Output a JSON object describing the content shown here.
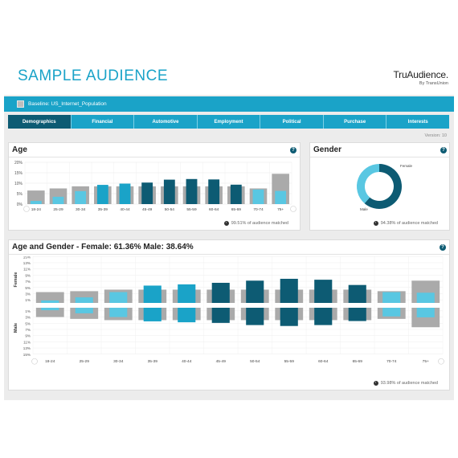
{
  "header": {
    "title": "SAMPLE AUDIENCE",
    "logo_brand": "TruAudience.",
    "logo_sub": "By TransUnion"
  },
  "baseline": {
    "label": "Baseline: US_Internet_Population"
  },
  "tabs": [
    {
      "label": "Demographics",
      "active": true
    },
    {
      "label": "Financial"
    },
    {
      "label": "Automotive"
    },
    {
      "label": "Employment"
    },
    {
      "label": "Political"
    },
    {
      "label": "Purchase"
    },
    {
      "label": "Interests"
    }
  ],
  "version": "Version: 10",
  "age_card": {
    "title": "Age",
    "help": "?",
    "matched": "99.51% of audience matched"
  },
  "gender_card": {
    "title": "Gender",
    "help": "?",
    "matched": "94.38% of audience matched"
  },
  "age_gender_card": {
    "title": "Age and Gender - Female: 61.36% Male: 38.64%",
    "help": "?",
    "matched": "93.98% of audience matched",
    "female_label": "Female",
    "male_label": "Male"
  },
  "colors": {
    "accent": "#1aa3c8",
    "dark": "#0d5b73",
    "light": "#59c7e2",
    "baseline": "#aaaaaa"
  },
  "chart_data": [
    {
      "type": "bar",
      "id": "age",
      "categories": [
        "18-24",
        "25-29",
        "30-34",
        "35-39",
        "40-44",
        "45-49",
        "50-54",
        "55-59",
        "60-64",
        "65-69",
        "70-74",
        "75+"
      ],
      "series": [
        {
          "values": [
            6.5,
            7.5,
            8.5,
            8.5,
            8.5,
            8.5,
            8.5,
            8.5,
            8.5,
            8.5,
            7.5,
            14.5
          ]
        },
        {
          "values": [
            1.5,
            3.5,
            6.2,
            9.2,
            9.8,
            10.3,
            11.7,
            12.0,
            11.8,
            9.3,
            7.0,
            6.3
          ]
        }
      ],
      "yticks": [
        "0%",
        "5%",
        "10%",
        "15%",
        "20%"
      ],
      "ylim": [
        0,
        20
      ]
    },
    {
      "type": "pie",
      "id": "gender",
      "labels": [
        "Female",
        "Male"
      ],
      "values": [
        61.36,
        38.64
      ]
    },
    {
      "type": "bar",
      "id": "age_gender",
      "categories": [
        "18-24",
        "25-29",
        "30-34",
        "35-39",
        "40-44",
        "45-49",
        "50-54",
        "55-59",
        "60-64",
        "65-69",
        "70-74",
        "75+"
      ],
      "series": [
        {
          "name": "Female",
          "values": [
            3.5,
            3.8,
            4.3,
            4.3,
            4.3,
            4.3,
            4.3,
            4.3,
            4.3,
            4.3,
            3.8,
            7.2
          ]
        },
        {
          "name": "Female",
          "values": [
            0.8,
            1.8,
            3.5,
            5.6,
            6.0,
            6.5,
            7.2,
            7.8,
            7.5,
            5.8,
            3.5,
            3.3
          ]
        },
        {
          "name": "Male",
          "values": [
            3.0,
            3.6,
            4.0,
            4.0,
            4.0,
            4.0,
            4.0,
            4.0,
            4.0,
            4.0,
            3.6,
            6.3
          ]
        },
        {
          "name": "Male",
          "values": [
            0.8,
            1.8,
            3.0,
            4.4,
            4.7,
            4.9,
            5.6,
            5.9,
            5.6,
            4.3,
            2.8,
            3.1
          ]
        }
      ],
      "yticks": [
        "15%",
        "13%",
        "11%",
        "9%",
        "7%",
        "5%",
        "3%",
        "1%"
      ],
      "ylim": [
        0,
        15
      ]
    }
  ]
}
